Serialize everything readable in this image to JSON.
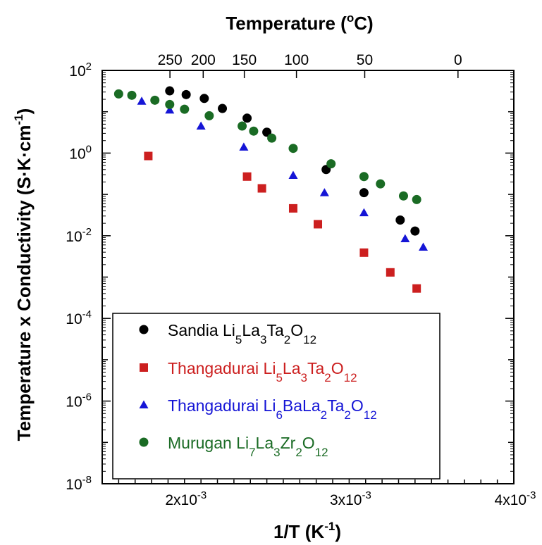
{
  "chart_data": {
    "type": "scatter",
    "title": "",
    "top_axis": {
      "title": "Temperature (",
      "title_sup": "o",
      "title_end": "C)",
      "tick_labels": [
        "250",
        "200",
        "150",
        "100",
        "50",
        "0"
      ],
      "tick_celsius": [
        250,
        200,
        150,
        100,
        50,
        0
      ]
    },
    "xlabel": "1/T (K",
    "xlabel_sup": "-1",
    "xlabel_end": ")",
    "ylabel": "Temperature x Conductivity (S·K·cm",
    "ylabel_sup": "-1",
    "ylabel_end": ")",
    "xlim": [
      0.0015,
      0.004
    ],
    "ylim_log10": [
      -8,
      2
    ],
    "y_scale": "log",
    "grid": false,
    "legend_placement": "bottom-left",
    "x_tick_labels": [
      {
        "value": 0.002,
        "base": "2x10",
        "exp": "-3"
      },
      {
        "value": 0.003,
        "base": "3x10",
        "exp": "-3"
      },
      {
        "value": 0.004,
        "base": "4x10",
        "exp": "-3"
      }
    ],
    "y_tick_labels": [
      {
        "exp_value": 2,
        "base": "10",
        "exp": "2"
      },
      {
        "exp_value": 0,
        "base": "10",
        "exp": "0"
      },
      {
        "exp_value": -2,
        "base": "10",
        "exp": "-2"
      },
      {
        "exp_value": -4,
        "base": "10",
        "exp": "-4"
      },
      {
        "exp_value": -6,
        "base": "10",
        "exp": "-6"
      },
      {
        "exp_value": -8,
        "base": "10",
        "exp": "-8"
      }
    ],
    "series": [
      {
        "name": "Sandia Li5La3Ta2O12",
        "label_parts": [
          [
            "Sandia Li",
            ""
          ],
          [
            "5",
            "sub"
          ],
          [
            "La",
            ""
          ],
          [
            "3",
            "sub"
          ],
          [
            "Ta",
            ""
          ],
          [
            "2",
            "sub"
          ],
          [
            "O",
            ""
          ],
          [
            "12",
            "sub"
          ]
        ],
        "marker": "circle",
        "color": "#000000",
        "x": [
          0.00191,
          0.00201,
          0.00212,
          0.00223,
          0.00238,
          0.0025,
          0.00286,
          0.00309,
          0.00331,
          0.0034
        ],
        "y": [
          32,
          26,
          21,
          12,
          7,
          3.2,
          0.4,
          0.11,
          0.024,
          0.013
        ]
      },
      {
        "name": "Thangadurai Li5La3Ta2O12",
        "label_parts": [
          [
            "Thangadurai Li",
            ""
          ],
          [
            "5",
            "sub"
          ],
          [
            "La",
            ""
          ],
          [
            "3",
            "sub"
          ],
          [
            "Ta",
            ""
          ],
          [
            "2",
            "sub"
          ],
          [
            "O",
            ""
          ],
          [
            "12",
            "sub"
          ]
        ],
        "marker": "square",
        "color": "#cc1f1f",
        "x": [
          0.00178,
          0.00238,
          0.00247,
          0.00266,
          0.00281,
          0.00309,
          0.00325,
          0.00341
        ],
        "y": [
          0.85,
          0.27,
          0.14,
          0.046,
          0.019,
          0.0039,
          0.0013,
          0.00053
        ]
      },
      {
        "name": "Thangadurai Li6BaLa2Ta2O12",
        "label_parts": [
          [
            "Thangadurai Li",
            ""
          ],
          [
            "6",
            "sub"
          ],
          [
            "BaLa",
            ""
          ],
          [
            "2",
            "sub"
          ],
          [
            "Ta",
            ""
          ],
          [
            "2",
            "sub"
          ],
          [
            "O",
            ""
          ],
          [
            "12",
            "sub"
          ]
        ],
        "marker": "triangle",
        "color": "#1515d6",
        "x": [
          0.00174,
          0.00191,
          0.0021,
          0.00236,
          0.00266,
          0.00285,
          0.00309,
          0.00334,
          0.00345
        ],
        "y": [
          18,
          11,
          4.5,
          1.4,
          0.29,
          0.11,
          0.036,
          0.0085,
          0.0053
        ]
      },
      {
        "name": "Murugan Li7La3Zr2O12",
        "label_parts": [
          [
            "Murugan Li",
            ""
          ],
          [
            "7",
            "sub"
          ],
          [
            "La",
            ""
          ],
          [
            "3",
            "sub"
          ],
          [
            "Zr",
            ""
          ],
          [
            "2",
            "sub"
          ],
          [
            "O",
            ""
          ],
          [
            "12",
            "sub"
          ]
        ],
        "marker": "circle",
        "color": "#1a6b24",
        "x": [
          0.0016,
          0.00168,
          0.00182,
          0.00191,
          0.002,
          0.00215,
          0.00235,
          0.00242,
          0.00253,
          0.00266,
          0.00289,
          0.00309,
          0.00319,
          0.00333,
          0.00341
        ],
        "y": [
          27,
          25,
          19,
          15,
          11.5,
          8,
          4.5,
          3.4,
          2.3,
          1.3,
          0.55,
          0.27,
          0.18,
          0.092,
          0.075
        ]
      }
    ]
  }
}
